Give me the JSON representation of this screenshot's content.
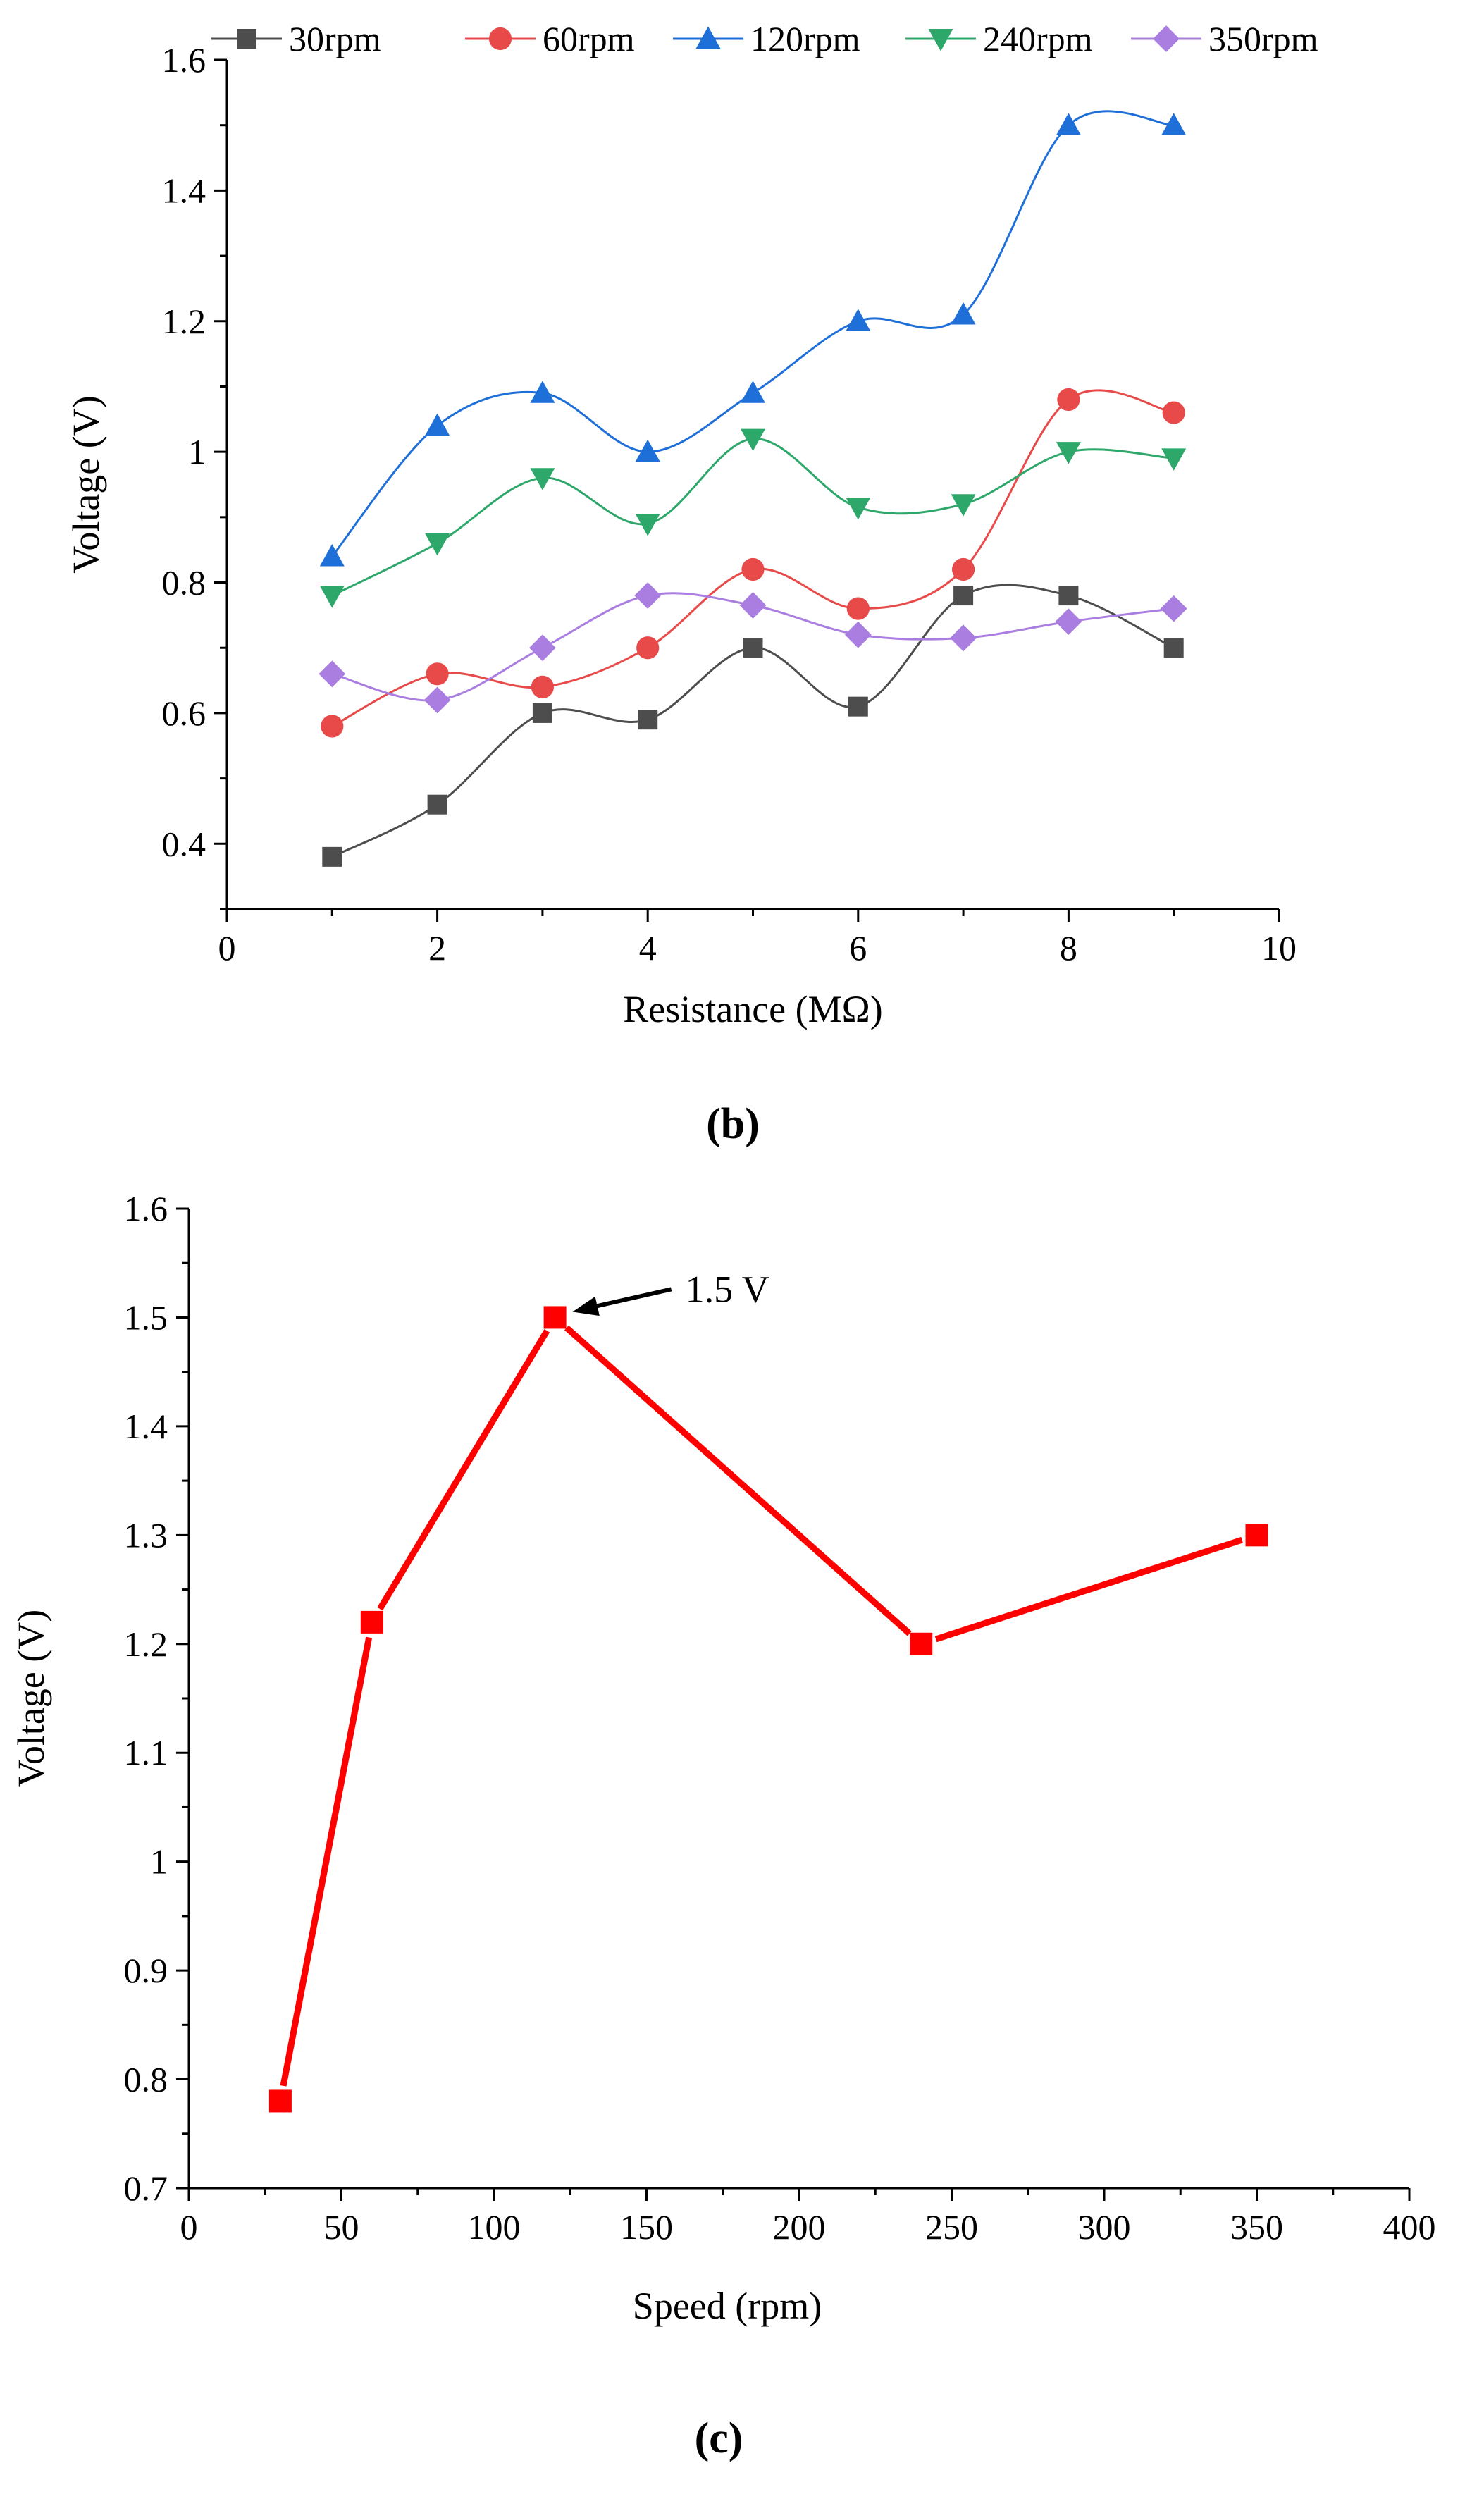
{
  "chart_data": [
    {
      "type": "line",
      "panel_label": "b",
      "panel_label_text": "(b)",
      "title": "",
      "xlabel": "Resistance (MΩ)",
      "ylabel": "Voltage (V)",
      "xlim": [
        0,
        10
      ],
      "ylim": [
        0.3,
        1.6
      ],
      "xticks": [
        0,
        2,
        4,
        6,
        8,
        10
      ],
      "xtick_labels": [
        "0",
        "2",
        "4",
        "6",
        "8",
        "10"
      ],
      "yticks": [
        0.4,
        0.6,
        0.8,
        1.0,
        1.2,
        1.4,
        1.6
      ],
      "ytick_labels": [
        "0.4",
        "0.6",
        "0.8",
        "1",
        "1.2",
        "1.4",
        "1.6"
      ],
      "grid": false,
      "legend_position": "top",
      "smooth": true,
      "x": [
        1,
        2,
        3,
        4,
        5,
        6,
        7,
        8,
        9
      ],
      "series": [
        {
          "name": "30rpm",
          "color": "#4d4d4d",
          "marker": "square",
          "values": [
            0.38,
            0.46,
            0.6,
            0.59,
            0.7,
            0.61,
            0.78,
            0.78,
            0.7
          ]
        },
        {
          "name": "60rpm",
          "color": "#e84a4a",
          "marker": "circle",
          "values": [
            0.58,
            0.66,
            0.64,
            0.7,
            0.82,
            0.76,
            0.82,
            1.08,
            1.06
          ]
        },
        {
          "name": "120rpm",
          "color": "#1f6fd9",
          "marker": "triangle-up",
          "values": [
            0.84,
            1.04,
            1.09,
            1.0,
            1.09,
            1.2,
            1.21,
            1.5,
            1.5
          ]
        },
        {
          "name": "240rpm",
          "color": "#2ea86a",
          "marker": "triangle-down",
          "values": [
            0.78,
            0.86,
            0.96,
            0.89,
            1.02,
            0.915,
            0.92,
            1.0,
            0.99
          ]
        },
        {
          "name": "350rpm",
          "color": "#a97ee0",
          "marker": "diamond",
          "values": [
            0.66,
            0.62,
            0.7,
            0.78,
            0.765,
            0.72,
            0.715,
            0.74,
            0.76
          ]
        }
      ]
    },
    {
      "type": "line",
      "panel_label": "c",
      "panel_label_text": "(c)",
      "title": "",
      "xlabel": "Speed (rpm)",
      "ylabel": "Voltage (V)",
      "xlim": [
        0,
        400
      ],
      "ylim": [
        0.7,
        1.6
      ],
      "xticks": [
        0,
        50,
        100,
        150,
        200,
        250,
        300,
        350,
        400
      ],
      "xtick_labels": [
        "0",
        "50",
        "100",
        "150",
        "200",
        "250",
        "300",
        "350",
        "400"
      ],
      "yticks": [
        0.7,
        0.8,
        0.9,
        1.0,
        1.1,
        1.2,
        1.3,
        1.4,
        1.5,
        1.6
      ],
      "ytick_labels": [
        "0.7",
        "0.8",
        "0.9",
        "1",
        "1.1",
        "1.2",
        "1.3",
        "1.4",
        "1.5",
        "1.6"
      ],
      "grid": false,
      "series": [
        {
          "name": "Voltage",
          "color": "#ff0000",
          "marker": "square",
          "x": [
            30,
            60,
            120,
            240,
            350
          ],
          "values": [
            0.78,
            1.22,
            1.5,
            1.2,
            1.3
          ]
        }
      ],
      "annotations": [
        {
          "text": "1.5 V",
          "x": 120,
          "y": 1.5
        }
      ]
    }
  ]
}
